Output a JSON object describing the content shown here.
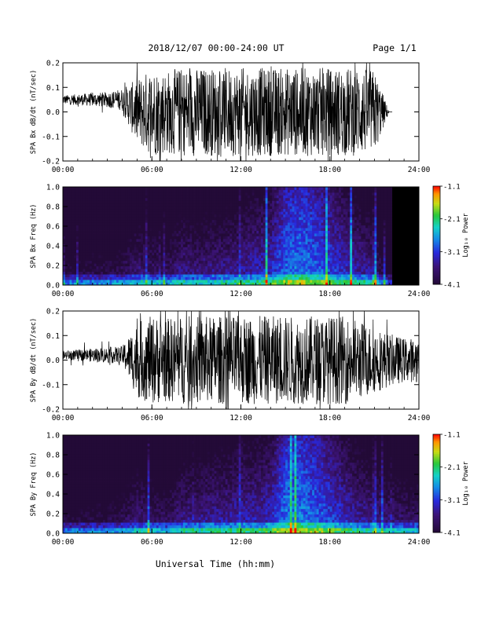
{
  "header": {
    "date_range": "2018/12/07  00:00-24:00 UT",
    "page": "Page 1/1"
  },
  "xlabel": "Universal Time (hh:mm)",
  "colors": {
    "background": "#ffffff",
    "waveform": "#000000",
    "spectrogram_floor": "#2a0f3a"
  },
  "chart_data": [
    {
      "type": "line",
      "ylabel": "SPA Bx dB/dt (nT/sec)",
      "ylim": [
        -0.2,
        0.2
      ],
      "yticks": [
        "-0.2",
        "-0.1",
        "0.0",
        "0.1",
        "0.2"
      ],
      "xlim": [
        0,
        24
      ],
      "xticks": [
        "00:00",
        "06:00",
        "12:00",
        "18:00",
        "24:00"
      ],
      "series": [
        {
          "values": "approximate amplitude envelope (nT/sec) by hour",
          "hour": [
            0,
            1,
            2,
            3,
            4,
            5,
            6,
            7,
            8,
            9,
            10,
            11,
            12,
            13,
            14,
            15,
            16,
            17,
            18,
            19,
            20,
            21,
            22,
            23,
            24
          ],
          "amplitude": [
            0.02,
            0.025,
            0.03,
            0.035,
            0.05,
            0.15,
            0.2,
            0.19,
            0.2,
            0.2,
            0.2,
            0.2,
            0.2,
            0.2,
            0.2,
            0.2,
            0.2,
            0.2,
            0.2,
            0.2,
            0.2,
            0.19,
            0.0,
            0.0,
            0.0
          ],
          "mean": [
            0.05,
            0.05,
            0.05,
            0.05,
            0.05,
            0.0,
            0.0,
            0.0,
            0.0,
            0.0,
            0.0,
            0.0,
            0.0,
            0.0,
            0.0,
            0.0,
            0.0,
            0.0,
            0.0,
            0.0,
            0.0,
            0.0,
            0.0,
            0.0,
            0.0
          ]
        }
      ],
      "data_end_hour": 22.2
    },
    {
      "type": "heatmap",
      "ylabel": "SPA Bx Freq (Hz)",
      "ylim": [
        0.0,
        1.0
      ],
      "yticks": [
        "0.0",
        "0.2",
        "0.4",
        "0.6",
        "0.8",
        "1.0"
      ],
      "xlim": [
        0,
        24
      ],
      "xticks": [
        "00:00",
        "06:00",
        "12:00",
        "18:00",
        "24:00"
      ],
      "colorbar": {
        "label": "Log₁₀ Power",
        "ticks": [
          "-1.1",
          "-2.1",
          "-3.1",
          "-4.1"
        ],
        "range": [
          -4.1,
          -1.1
        ]
      },
      "data_end_hour": 22.2,
      "activity_by_hour": [
        0.15,
        0.15,
        0.2,
        0.2,
        0.25,
        0.4,
        0.35,
        0.3,
        0.45,
        0.4,
        0.45,
        0.45,
        0.5,
        0.55,
        0.6,
        0.8,
        0.85,
        0.8,
        0.7,
        0.6,
        0.5,
        0.45,
        0.0,
        0.0
      ]
    },
    {
      "type": "line",
      "ylabel": "SPA By dB/dt (nT/sec)",
      "ylim": [
        -0.2,
        0.2
      ],
      "yticks": [
        "-0.2",
        "-0.1",
        "0.0",
        "0.1",
        "0.2"
      ],
      "xlim": [
        0,
        24
      ],
      "xticks": [
        "00:00",
        "06:00",
        "12:00",
        "18:00",
        "24:00"
      ],
      "series": [
        {
          "values": "approximate amplitude envelope (nT/sec) by hour",
          "hour": [
            0,
            1,
            2,
            3,
            4,
            5,
            6,
            7,
            8,
            9,
            10,
            11,
            12,
            13,
            14,
            15,
            16,
            17,
            18,
            19,
            20,
            21,
            22,
            23,
            24
          ],
          "amplitude": [
            0.02,
            0.025,
            0.03,
            0.035,
            0.04,
            0.17,
            0.2,
            0.19,
            0.2,
            0.2,
            0.2,
            0.2,
            0.2,
            0.2,
            0.2,
            0.2,
            0.2,
            0.2,
            0.2,
            0.2,
            0.18,
            0.15,
            0.12,
            0.1,
            0.1
          ],
          "mean": [
            0.02,
            0.02,
            0.02,
            0.02,
            0.02,
            0.0,
            0.0,
            0.0,
            0.0,
            0.0,
            0.0,
            0.0,
            0.0,
            0.0,
            0.0,
            0.0,
            0.0,
            0.0,
            0.0,
            0.0,
            0.0,
            0.0,
            0.0,
            0.0,
            0.0
          ]
        }
      ],
      "data_end_hour": 24
    },
    {
      "type": "heatmap",
      "ylabel": "SPA By Freq (Hz)",
      "ylim": [
        0.0,
        1.0
      ],
      "yticks": [
        "0.0",
        "0.2",
        "0.4",
        "0.6",
        "0.8",
        "1.0"
      ],
      "xlim": [
        0,
        24
      ],
      "xticks": [
        "00:00",
        "06:00",
        "12:00",
        "18:00",
        "24:00"
      ],
      "colorbar": {
        "label": "Log₁₀ Power",
        "ticks": [
          "-1.1",
          "-2.1",
          "-3.1",
          "-4.1"
        ],
        "range": [
          -4.1,
          -1.1
        ]
      },
      "data_end_hour": 24,
      "activity_by_hour": [
        0.15,
        0.15,
        0.2,
        0.2,
        0.25,
        0.4,
        0.35,
        0.3,
        0.45,
        0.45,
        0.5,
        0.5,
        0.55,
        0.55,
        0.6,
        0.85,
        0.85,
        0.8,
        0.7,
        0.6,
        0.5,
        0.45,
        0.4,
        0.35
      ]
    }
  ]
}
